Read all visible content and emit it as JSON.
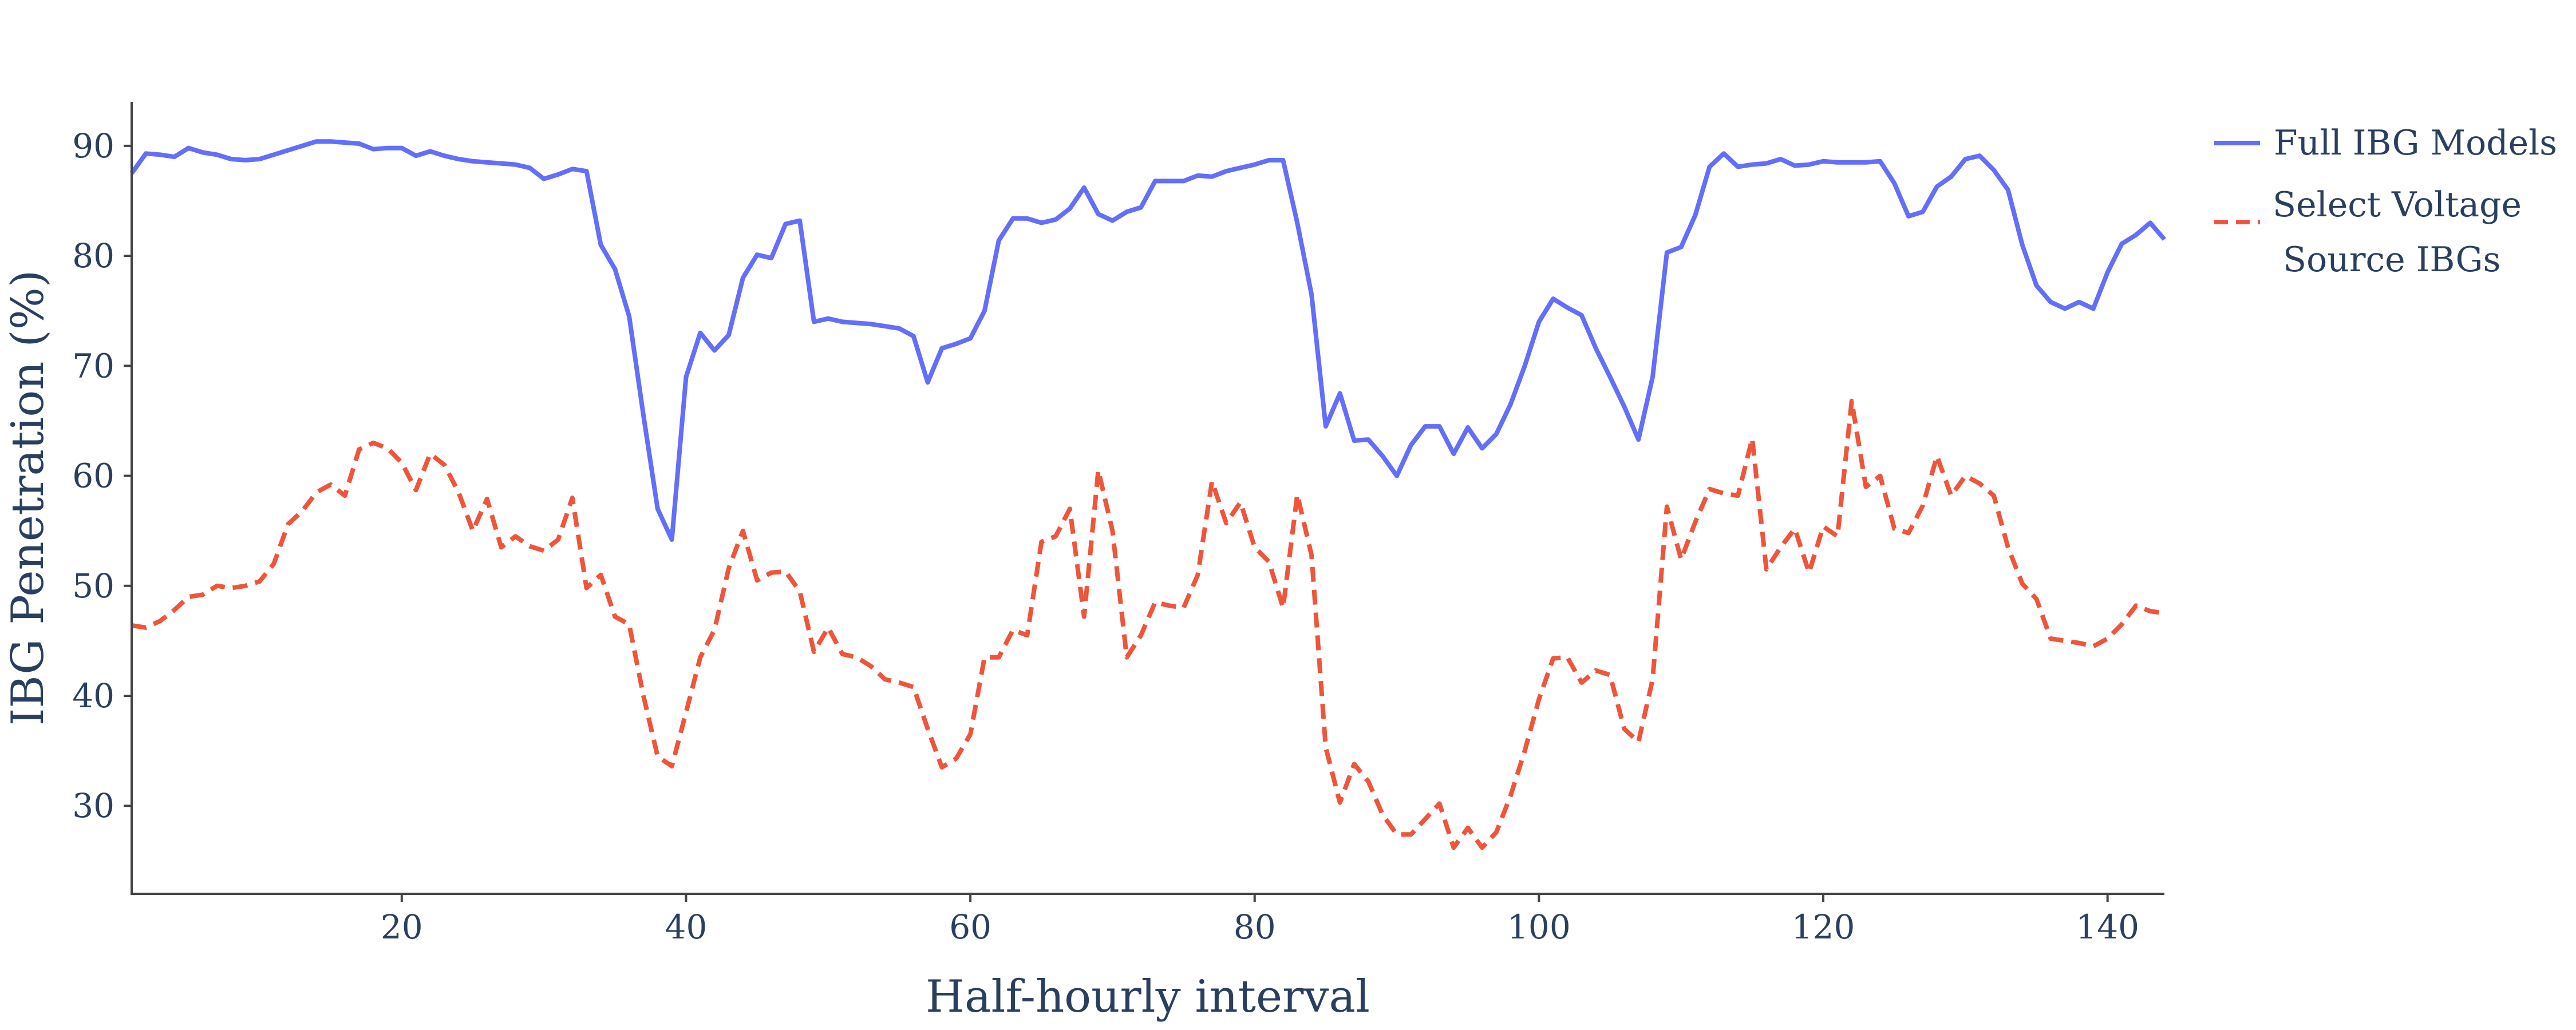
{
  "chart_data": {
    "type": "line",
    "title": "",
    "xlabel": "Half-hourly interval",
    "ylabel": "IBG Penetration (%)",
    "xlim": [
      1,
      144
    ],
    "ylim": [
      22,
      94
    ],
    "x_ticks": [
      20,
      40,
      60,
      80,
      100,
      120,
      140
    ],
    "y_ticks": [
      30,
      40,
      50,
      60,
      70,
      80,
      90
    ],
    "grid": false,
    "legend_position": "top-right",
    "series": [
      {
        "name": "Full IBG Models",
        "color": "#636efa",
        "dash": "solid",
        "x": [
          1,
          2,
          3,
          4,
          5,
          6,
          7,
          8,
          9,
          10,
          11,
          12,
          13,
          14,
          15,
          16,
          17,
          18,
          19,
          20,
          21,
          22,
          23,
          24,
          25,
          26,
          27,
          28,
          29,
          30,
          31,
          32,
          33,
          34,
          35,
          36,
          37,
          38,
          39,
          40,
          41,
          42,
          43,
          44,
          45,
          46,
          47,
          48,
          49,
          50,
          51,
          52,
          53,
          54,
          55,
          56,
          57,
          58,
          59,
          60,
          61,
          62,
          63,
          64,
          65,
          66,
          67,
          68,
          69,
          70,
          71,
          72,
          73,
          74,
          75,
          76,
          77,
          78,
          79,
          80,
          81,
          82,
          83,
          84,
          85,
          86,
          87,
          88,
          89,
          90,
          91,
          92,
          93,
          94,
          95,
          96,
          97,
          98,
          99,
          100,
          101,
          102,
          103,
          104,
          105,
          106,
          107,
          108,
          109,
          110,
          111,
          112,
          113,
          114,
          115,
          116,
          117,
          118,
          119,
          120,
          121,
          122,
          123,
          124,
          125,
          126,
          127,
          128,
          129,
          130,
          131,
          132,
          133,
          134,
          135,
          136,
          137,
          138,
          139,
          140,
          141,
          142,
          143,
          144
        ],
        "y": [
          87.5,
          89.3,
          89.2,
          89.0,
          89.8,
          89.4,
          89.2,
          88.8,
          88.7,
          88.8,
          89.2,
          89.6,
          90.0,
          90.4,
          90.4,
          90.3,
          90.2,
          89.7,
          89.8,
          89.8,
          89.1,
          89.5,
          89.1,
          88.8,
          88.6,
          88.5,
          88.4,
          88.3,
          88.0,
          87.0,
          87.4,
          87.9,
          87.7,
          81.0,
          78.8,
          74.5,
          65.5,
          57.0,
          54.2,
          69.0,
          73.0,
          71.4,
          72.8,
          78.0,
          80.1,
          79.8,
          82.9,
          83.2,
          74.0,
          74.3,
          74.0,
          73.9,
          73.8,
          73.6,
          73.4,
          72.7,
          68.5,
          71.6,
          72.0,
          72.5,
          75.0,
          81.4,
          83.4,
          83.4,
          83.0,
          83.3,
          84.3,
          86.2,
          83.8,
          83.2,
          84.0,
          84.4,
          86.8,
          86.8,
          86.8,
          87.3,
          87.2,
          87.7,
          88.0,
          88.3,
          88.7,
          88.7,
          83.0,
          76.5,
          64.5,
          67.5,
          63.2,
          63.3,
          61.8,
          60.0,
          62.8,
          64.5,
          64.5,
          62.0,
          64.4,
          62.5,
          63.8,
          66.5,
          70.0,
          74.0,
          76.1,
          75.3,
          74.6,
          71.6,
          69.0,
          66.3,
          63.3,
          69.0,
          80.3,
          80.8,
          83.7,
          88.1,
          89.3,
          88.1,
          88.3,
          88.4,
          88.8,
          88.2,
          88.3,
          88.6,
          88.5,
          88.5,
          88.5,
          88.6,
          86.6,
          83.6,
          84.0,
          86.3,
          87.2,
          88.8,
          89.1,
          87.8,
          86.0,
          81.0,
          77.3,
          75.8,
          75.2,
          75.8,
          75.2,
          78.5,
          81.1,
          81.9,
          83.0,
          81.5
        ]
      },
      {
        "name": "Select Voltage Source IBGs",
        "color": "#ef553b",
        "dash": "dash",
        "x": [
          1,
          2,
          3,
          4,
          5,
          6,
          7,
          8,
          9,
          10,
          11,
          12,
          13,
          14,
          15,
          16,
          17,
          18,
          19,
          20,
          21,
          22,
          23,
          24,
          25,
          26,
          27,
          28,
          29,
          30,
          31,
          32,
          33,
          34,
          35,
          36,
          37,
          38,
          39,
          40,
          41,
          42,
          43,
          44,
          45,
          46,
          47,
          48,
          49,
          50,
          51,
          52,
          53,
          54,
          55,
          56,
          57,
          58,
          59,
          60,
          61,
          62,
          63,
          64,
          65,
          66,
          67,
          68,
          69,
          70,
          71,
          72,
          73,
          74,
          75,
          76,
          77,
          78,
          79,
          80,
          81,
          82,
          83,
          84,
          85,
          86,
          87,
          88,
          89,
          90,
          91,
          92,
          93,
          94,
          95,
          96,
          97,
          98,
          99,
          100,
          101,
          102,
          103,
          104,
          105,
          106,
          107,
          108,
          109,
          110,
          111,
          112,
          113,
          114,
          115,
          116,
          117,
          118,
          119,
          120,
          121,
          122,
          123,
          124,
          125,
          126,
          127,
          128,
          129,
          130,
          131,
          132,
          133,
          134,
          135,
          136,
          137,
          138,
          139,
          140,
          141,
          142,
          143,
          144
        ],
        "y": [
          46.4,
          46.2,
          46.8,
          47.8,
          49.0,
          49.2,
          50.0,
          49.8,
          50.0,
          50.4,
          52.0,
          55.6,
          56.8,
          58.5,
          59.2,
          58.2,
          62.4,
          63.0,
          62.5,
          61.2,
          58.7,
          62.0,
          61.0,
          58.5,
          55.0,
          57.9,
          53.5,
          54.5,
          53.6,
          53.2,
          54.2,
          58.0,
          49.8,
          51.0,
          47.2,
          46.5,
          40.0,
          34.5,
          33.6,
          38.5,
          43.5,
          46.0,
          51.6,
          55.0,
          50.5,
          51.2,
          51.3,
          49.5,
          44.0,
          46.2,
          43.8,
          43.5,
          42.7,
          41.5,
          41.2,
          40.8,
          37.0,
          33.5,
          34.3,
          36.5,
          43.5,
          43.5,
          46.0,
          45.5,
          54.0,
          54.5,
          57.0,
          47.2,
          60.5,
          55.0,
          43.5,
          45.5,
          48.5,
          48.2,
          48.0,
          51.0,
          59.5,
          55.7,
          57.6,
          53.5,
          52.2,
          48.0,
          58.3,
          52.8,
          35.3,
          30.3,
          33.8,
          32.2,
          29.2,
          27.4,
          27.4,
          28.8,
          30.2,
          26.2,
          28.0,
          26.2,
          27.6,
          30.9,
          35.0,
          39.7,
          43.4,
          43.5,
          41.2,
          42.3,
          41.9,
          37.0,
          35.8,
          41.5,
          57.2,
          52.4,
          55.8,
          58.8,
          58.4,
          58.2,
          63.4,
          51.5,
          53.5,
          55.2,
          51.2,
          55.4,
          54.5,
          66.8,
          59.0,
          60.0,
          55.2,
          54.8,
          57.3,
          61.8,
          58.2,
          60.0,
          59.3,
          58.2,
          53.5,
          50.2,
          48.8,
          45.2,
          45.0,
          44.8,
          44.5,
          45.2,
          46.5,
          48.2,
          47.7,
          47.5
        ]
      }
    ]
  }
}
